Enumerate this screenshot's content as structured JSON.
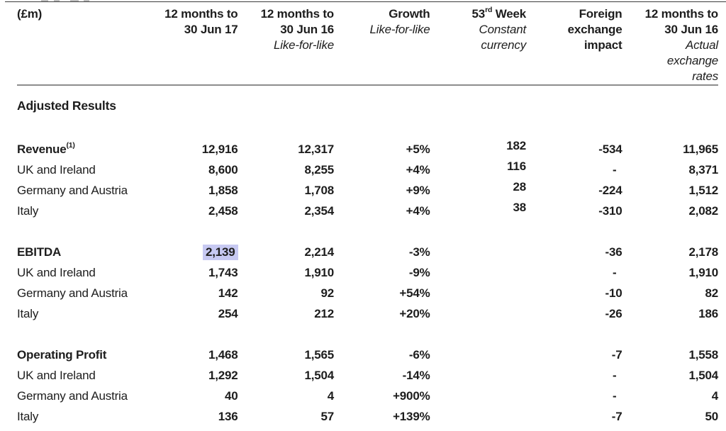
{
  "header": {
    "unit_label": "(£m)",
    "columns": [
      {
        "id": "fy17",
        "bold": [
          "12 months to",
          "30 Jun 17"
        ],
        "italic": []
      },
      {
        "id": "fy16-lfl",
        "bold": [
          "12 months to",
          "30 Jun 16"
        ],
        "italic": [
          "Like-for-like"
        ]
      },
      {
        "id": "growth",
        "bold": [
          "Growth"
        ],
        "italic": [
          "Like-for-like"
        ]
      },
      {
        "id": "week53",
        "bold": [
          {
            "pre": "53",
            "sup": "rd",
            "post": " Week"
          }
        ],
        "italic": [
          "Constant",
          "currency"
        ]
      },
      {
        "id": "fx-impact",
        "bold": [
          "Foreign",
          "exchange",
          "impact"
        ],
        "italic": []
      },
      {
        "id": "fy16-actual",
        "bold": [
          "12 months to",
          "30 Jun 16"
        ],
        "italic": [
          "Actual",
          "exchange",
          "rates"
        ]
      }
    ]
  },
  "section_title": "Adjusted Results",
  "highlight_color": "#c7c9f2",
  "table": {
    "column_ids": [
      "fy17",
      "fy16-lfl",
      "growth",
      "week53",
      "fx-impact",
      "fy16-actual"
    ],
    "groups": [
      {
        "name": "Revenue",
        "rows": [
          {
            "label": {
              "pre": "Revenue",
              "sup": "(1)",
              "post": ""
            },
            "label_text": "Revenue(1)",
            "bold": true,
            "values": [
              "12,916",
              "12,317",
              "+5%",
              "182",
              "-534",
              "11,965"
            ]
          },
          {
            "label": "UK and Ireland",
            "bold": false,
            "values": [
              "8,600",
              "8,255",
              "+4%",
              "116",
              "-",
              "8,371"
            ]
          },
          {
            "label": "Germany and Austria",
            "bold": false,
            "values": [
              "1,858",
              "1,708",
              "+9%",
              "28",
              "-224",
              "1,512"
            ]
          },
          {
            "label": "Italy",
            "bold": false,
            "values": [
              "2,458",
              "2,354",
              "+4%",
              "38",
              "-310",
              "2,082"
            ]
          }
        ]
      },
      {
        "name": "EBITDA",
        "rows": [
          {
            "label": "EBITDA",
            "bold": true,
            "highlight_value_index": 0,
            "values": [
              "2,139",
              "2,214",
              "-3%",
              "",
              "-36",
              "2,178"
            ]
          },
          {
            "label": "UK and Ireland",
            "bold": false,
            "values": [
              "1,743",
              "1,910",
              "-9%",
              "",
              "-",
              "1,910"
            ]
          },
          {
            "label": "Germany and Austria",
            "bold": false,
            "values": [
              "142",
              "92",
              "+54%",
              "",
              "-10",
              "82"
            ]
          },
          {
            "label": "Italy",
            "bold": false,
            "values": [
              "254",
              "212",
              "+20%",
              "",
              "-26",
              "186"
            ]
          }
        ]
      },
      {
        "name": "Operating Profit",
        "rows": [
          {
            "label": "Operating Profit",
            "bold": true,
            "values": [
              "1,468",
              "1,565",
              "-6%",
              "",
              "-7",
              "1,558"
            ]
          },
          {
            "label": "UK and Ireland",
            "bold": false,
            "values": [
              "1,292",
              "1,504",
              "-14%",
              "",
              "-",
              "1,504"
            ]
          },
          {
            "label": "Germany and Austria",
            "bold": false,
            "values": [
              "40",
              "4",
              "+900%",
              "",
              "-",
              "4"
            ]
          },
          {
            "label": "Italy",
            "bold": false,
            "values": [
              "136",
              "57",
              "+139%",
              "",
              "-7",
              "50"
            ]
          }
        ]
      }
    ]
  }
}
